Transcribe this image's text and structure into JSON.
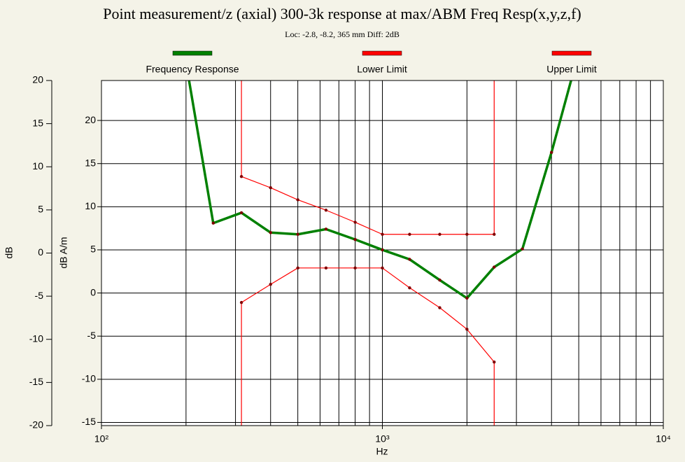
{
  "chart_data": {
    "type": "line",
    "title": "Point measurement/z (axial) 300-3k response at max/ABM Freq Resp(x,y,z,f)",
    "subtitle": "Loc: -2.8, -8.2, 365 mm Diff: 2dB",
    "x_label": "Hz",
    "y_label": "dB",
    "y2_label": "dB A/m",
    "xscale": "log",
    "xlim": [
      100,
      10000
    ],
    "xticks": [
      {
        "value": 100,
        "label": "10²"
      },
      {
        "value": 1000,
        "label": "10³"
      },
      {
        "value": 10000,
        "label": "10⁴"
      }
    ],
    "xgrid": [
      200,
      300,
      400,
      500,
      600,
      700,
      800,
      900,
      1000,
      2000,
      3000,
      4000,
      5000,
      6000,
      7000,
      8000,
      9000
    ],
    "ylim": [
      -20,
      20
    ],
    "yticks": [
      -20,
      -15,
      -10,
      -5,
      0,
      5,
      10,
      15,
      20
    ],
    "y2lim": [
      -15.37,
      24.63
    ],
    "y2ticks": [
      -15,
      -10,
      -5,
      0,
      5,
      10,
      15,
      20
    ],
    "grid": true,
    "series": [
      {
        "name": "Frequency Response",
        "color": "#008000",
        "axis": "y2",
        "x": [
          200,
          250,
          315,
          400,
          500,
          630,
          800,
          1000,
          1250,
          1600,
          2000,
          2500,
          3150,
          4000,
          5000
        ],
        "values": [
          26.7,
          8.1,
          9.3,
          7.0,
          6.8,
          7.4,
          6.2,
          5.0,
          3.9,
          1.5,
          -0.6,
          3.0,
          5.1,
          16.3,
          27.9
        ]
      },
      {
        "name": "Lower Limit",
        "color": "#ff0000",
        "axis": "y2",
        "x": [
          315,
          315,
          400,
          500,
          630,
          800,
          1000,
          1250,
          1600,
          2000,
          2500,
          2500
        ],
        "values": [
          -16,
          -1.1,
          1.0,
          2.9,
          2.9,
          2.9,
          2.9,
          0.6,
          -1.7,
          -4.2,
          -8.0,
          -16
        ]
      },
      {
        "name": "Upper Limit",
        "color": "#ff0000",
        "axis": "y2",
        "x": [
          315,
          315,
          400,
          500,
          630,
          800,
          1000,
          1250,
          1600,
          2000,
          2500,
          2500
        ],
        "values": [
          26,
          13.5,
          12.2,
          10.8,
          9.6,
          8.2,
          6.8,
          6.8,
          6.8,
          6.8,
          6.8,
          26
        ]
      }
    ]
  }
}
